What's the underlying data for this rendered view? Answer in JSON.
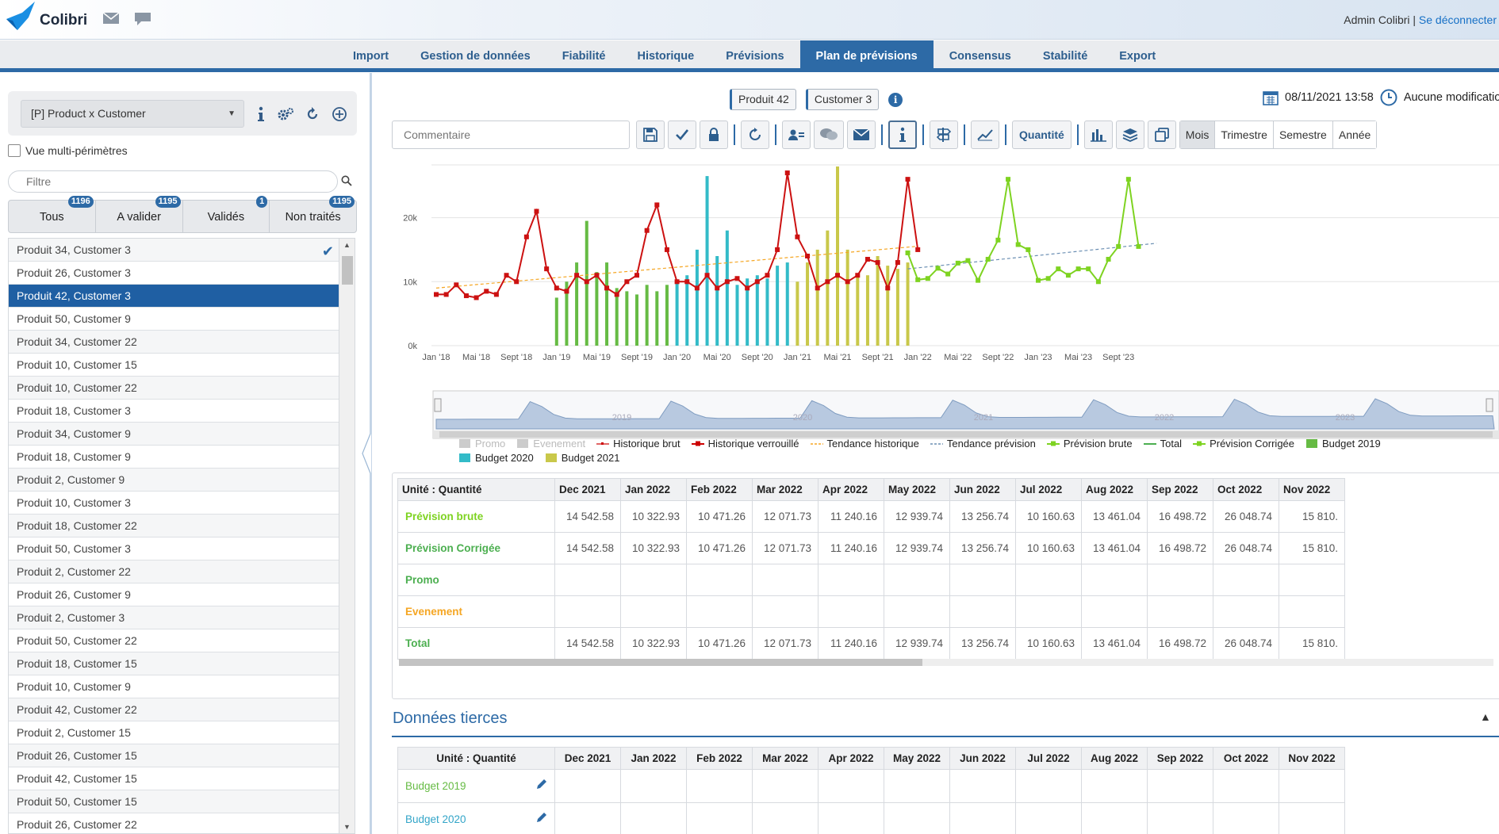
{
  "header": {
    "logo_text": "Colibri",
    "user": "Admin Colibri",
    "separator": " | ",
    "logout": "Se déconnecter"
  },
  "nav": {
    "items": [
      "Import",
      "Gestion de données",
      "Fiabilité",
      "Historique",
      "Prévisions",
      "Plan de prévisions",
      "Consensus",
      "Stabilité",
      "Export"
    ],
    "active_index": 5
  },
  "left": {
    "scope_select": "[P] Product x Customer",
    "multi_perimetre": "Vue multi-périmètres",
    "filter_placeholder": "Filtre",
    "tabs": [
      {
        "label": "Tous",
        "badge": "1196"
      },
      {
        "label": "A valider",
        "badge": "1195"
      },
      {
        "label": "Validés",
        "badge": "1"
      },
      {
        "label": "Non traités",
        "badge": "1195"
      }
    ],
    "items": [
      "Produit 34, Customer 3",
      "Produit 26, Customer 3",
      "Produit 42, Customer 3",
      "Produit 50, Customer 9",
      "Produit 34, Customer 22",
      "Produit 10, Customer 15",
      "Produit 10, Customer 22",
      "Produit 18, Customer 3",
      "Produit 34, Customer 9",
      "Produit 18, Customer 9",
      "Produit 2, Customer 9",
      "Produit 10, Customer 3",
      "Produit 18, Customer 22",
      "Produit 50, Customer 3",
      "Produit 2, Customer 22",
      "Produit 26, Customer 9",
      "Produit 2, Customer 3",
      "Produit 50, Customer 22",
      "Produit 18, Customer 15",
      "Produit 10, Customer 9",
      "Produit 42, Customer 22",
      "Produit 2, Customer 15",
      "Produit 26, Customer 15",
      "Produit 42, Customer 15",
      "Produit 50, Customer 15",
      "Produit 26, Customer 22"
    ],
    "selected_index": 2,
    "checked_index": 0
  },
  "right": {
    "chips": [
      "Produit 42",
      "Customer 3"
    ],
    "datetime": "08/11/2021 13:58",
    "modification": "Aucune modification",
    "comment_placeholder": "Commentaire",
    "quantity_label": "Quantité",
    "periods": [
      "Mois",
      "Trimestre",
      "Semestre",
      "Année"
    ],
    "active_period_index": 0
  },
  "legend": [
    {
      "label": "Promo",
      "color": "#cccccc",
      "kind": "box",
      "muted": true
    },
    {
      "label": "Evenement",
      "color": "#cccccc",
      "kind": "box",
      "muted": true
    },
    {
      "label": "Historique brut",
      "color": "#cc0000",
      "kind": "line-thin"
    },
    {
      "label": "Historique verrouillé",
      "color": "#cc0000",
      "kind": "line-dot"
    },
    {
      "label": "Tendance historique",
      "color": "#f5a623",
      "kind": "dash"
    },
    {
      "label": "Tendance prévision",
      "color": "#6b8fb3",
      "kind": "dash"
    },
    {
      "label": "Prévision brute",
      "color": "#7ed321",
      "kind": "line-dot"
    },
    {
      "label": "Total",
      "color": "#4caf50",
      "kind": "line"
    },
    {
      "label": "Prévision Corrigée",
      "color": "#7ed321",
      "kind": "line-dot"
    },
    {
      "label": "Budget 2019",
      "color": "#66bb44",
      "kind": "box"
    },
    {
      "label": "Budget 2020",
      "color": "#33bbc8",
      "kind": "box"
    },
    {
      "label": "Budget 2021",
      "color": "#c9c84a",
      "kind": "box"
    }
  ],
  "chart_data": {
    "type": "line",
    "x_tick_labels": [
      "Jan '18",
      "Mai '18",
      "Sept '18",
      "Jan '19",
      "Mai '19",
      "Sept '19",
      "Jan '20",
      "Mai '20",
      "Sept '20",
      "Jan '21",
      "Mai '21",
      "Sept '21",
      "Jan '22",
      "Mai '22",
      "Sept '22",
      "Jan '23",
      "Mai '23",
      "Sept '23"
    ],
    "y_tick_labels": [
      "0k",
      "10k",
      "20k"
    ],
    "ylim": [
      0,
      28000
    ],
    "navigator_labels": [
      "2019",
      "2020",
      "2021",
      "2022",
      "2023"
    ],
    "start": "Jan 2018",
    "colors": {
      "historique": "#cc1111",
      "prevision": "#7ed321",
      "budget_2019": "#66bb44",
      "budget_2020": "#33bbc8",
      "budget_2021": "#c9c84a",
      "tendance_hist": "#f5a623",
      "tendance_prev": "#6b8fb3"
    },
    "series": [
      {
        "name": "Historique verrouillé",
        "start_index": 0,
        "values": [
          8000,
          8000,
          9500,
          7800,
          7500,
          8500,
          8000,
          11000,
          10000,
          17000,
          21000,
          12000,
          9000,
          8500,
          11000,
          10000,
          11000,
          9000,
          8000,
          10000,
          11000,
          18000,
          22000,
          15000,
          10000,
          10000,
          9000,
          11000,
          9000,
          10000,
          10500,
          9000,
          10000,
          11000,
          15000,
          27000,
          17000,
          14000,
          9000,
          10000,
          11000,
          10000,
          11000,
          13500,
          13000,
          9000,
          13000,
          26000,
          15000
        ]
      },
      {
        "name": "Prévision Corrigée",
        "start_index": 47,
        "values": [
          14500,
          10300,
          10500,
          12100,
          11200,
          12900,
          13300,
          10200,
          13500,
          16500,
          26000,
          15800,
          15000,
          10200,
          10500,
          12000,
          11000,
          12000,
          12000,
          10000,
          13500,
          15500,
          26000,
          15500
        ]
      },
      {
        "name": "Budget 2019",
        "start_index": 12,
        "values": [
          7500,
          10000,
          13000,
          19500,
          11500,
          13000,
          9000,
          8500,
          8000,
          9500,
          8500,
          9500
        ]
      },
      {
        "name": "Budget 2020",
        "start_index": 24,
        "values": [
          10000,
          11000,
          15000,
          26500,
          14000,
          18000,
          9500,
          10500,
          11000,
          10500,
          12500,
          13000
        ]
      },
      {
        "name": "Budget 2021",
        "start_index": 36,
        "values": [
          10000,
          13000,
          15000,
          18000,
          28000,
          15000,
          11000,
          11000,
          14000,
          12500,
          12000,
          13000
        ]
      }
    ],
    "trend_historique": {
      "from": 9000,
      "to": 15500,
      "start_index": 0,
      "end_index": 47
    },
    "trend_prevision": {
      "from": 12000,
      "to": 16000,
      "start_index": 47,
      "end_index": 71
    }
  },
  "main_table": {
    "unit_label": "Unité : Quantité",
    "columns": [
      "Dec 2021",
      "Jan 2022",
      "Feb 2022",
      "Mar 2022",
      "Apr 2022",
      "May 2022",
      "Jun 2022",
      "Jul 2022",
      "Aug 2022",
      "Sep 2022",
      "Oct 2022",
      "Nov 2022"
    ],
    "rows": [
      {
        "label": "Prévision brute",
        "color": "#7ed321",
        "values": [
          "14 542.58",
          "10 322.93",
          "10 471.26",
          "12 071.73",
          "11 240.16",
          "12 939.74",
          "13 256.74",
          "10 160.63",
          "13 461.04",
          "16 498.72",
          "26 048.74",
          "15 810."
        ]
      },
      {
        "label": "Prévision Corrigée",
        "color": "#4caf50",
        "values": [
          "14 542.58",
          "10 322.93",
          "10 471.26",
          "12 071.73",
          "11 240.16",
          "12 939.74",
          "13 256.74",
          "10 160.63",
          "13 461.04",
          "16 498.72",
          "26 048.74",
          "15 810."
        ]
      },
      {
        "label": "Promo",
        "color": "#4caf50",
        "values": [
          "",
          "",
          "",
          "",
          "",
          "",
          "",
          "",
          "",
          "",
          "",
          ""
        ]
      },
      {
        "label": "Evenement",
        "color": "#f5a623",
        "values": [
          "",
          "",
          "",
          "",
          "",
          "",
          "",
          "",
          "",
          "",
          "",
          ""
        ]
      },
      {
        "label": "Total",
        "color": "#4caf50",
        "values": [
          "14 542.58",
          "10 322.93",
          "10 471.26",
          "12 071.73",
          "11 240.16",
          "12 939.74",
          "13 256.74",
          "10 160.63",
          "13 461.04",
          "16 498.72",
          "26 048.74",
          "15 810."
        ]
      }
    ]
  },
  "third_party": {
    "title": "Données tierces",
    "unit_label": "Unité : Quantité",
    "columns": [
      "Dec 2021",
      "Jan 2022",
      "Feb 2022",
      "Mar 2022",
      "Apr 2022",
      "May 2022",
      "Jun 2022",
      "Jul 2022",
      "Aug 2022",
      "Sep 2022",
      "Oct 2022",
      "Nov 2022"
    ],
    "rows": [
      {
        "label": "Budget 2019",
        "color": "#66bb44"
      },
      {
        "label": "Budget 2020",
        "color": "#33a5c8"
      }
    ]
  }
}
